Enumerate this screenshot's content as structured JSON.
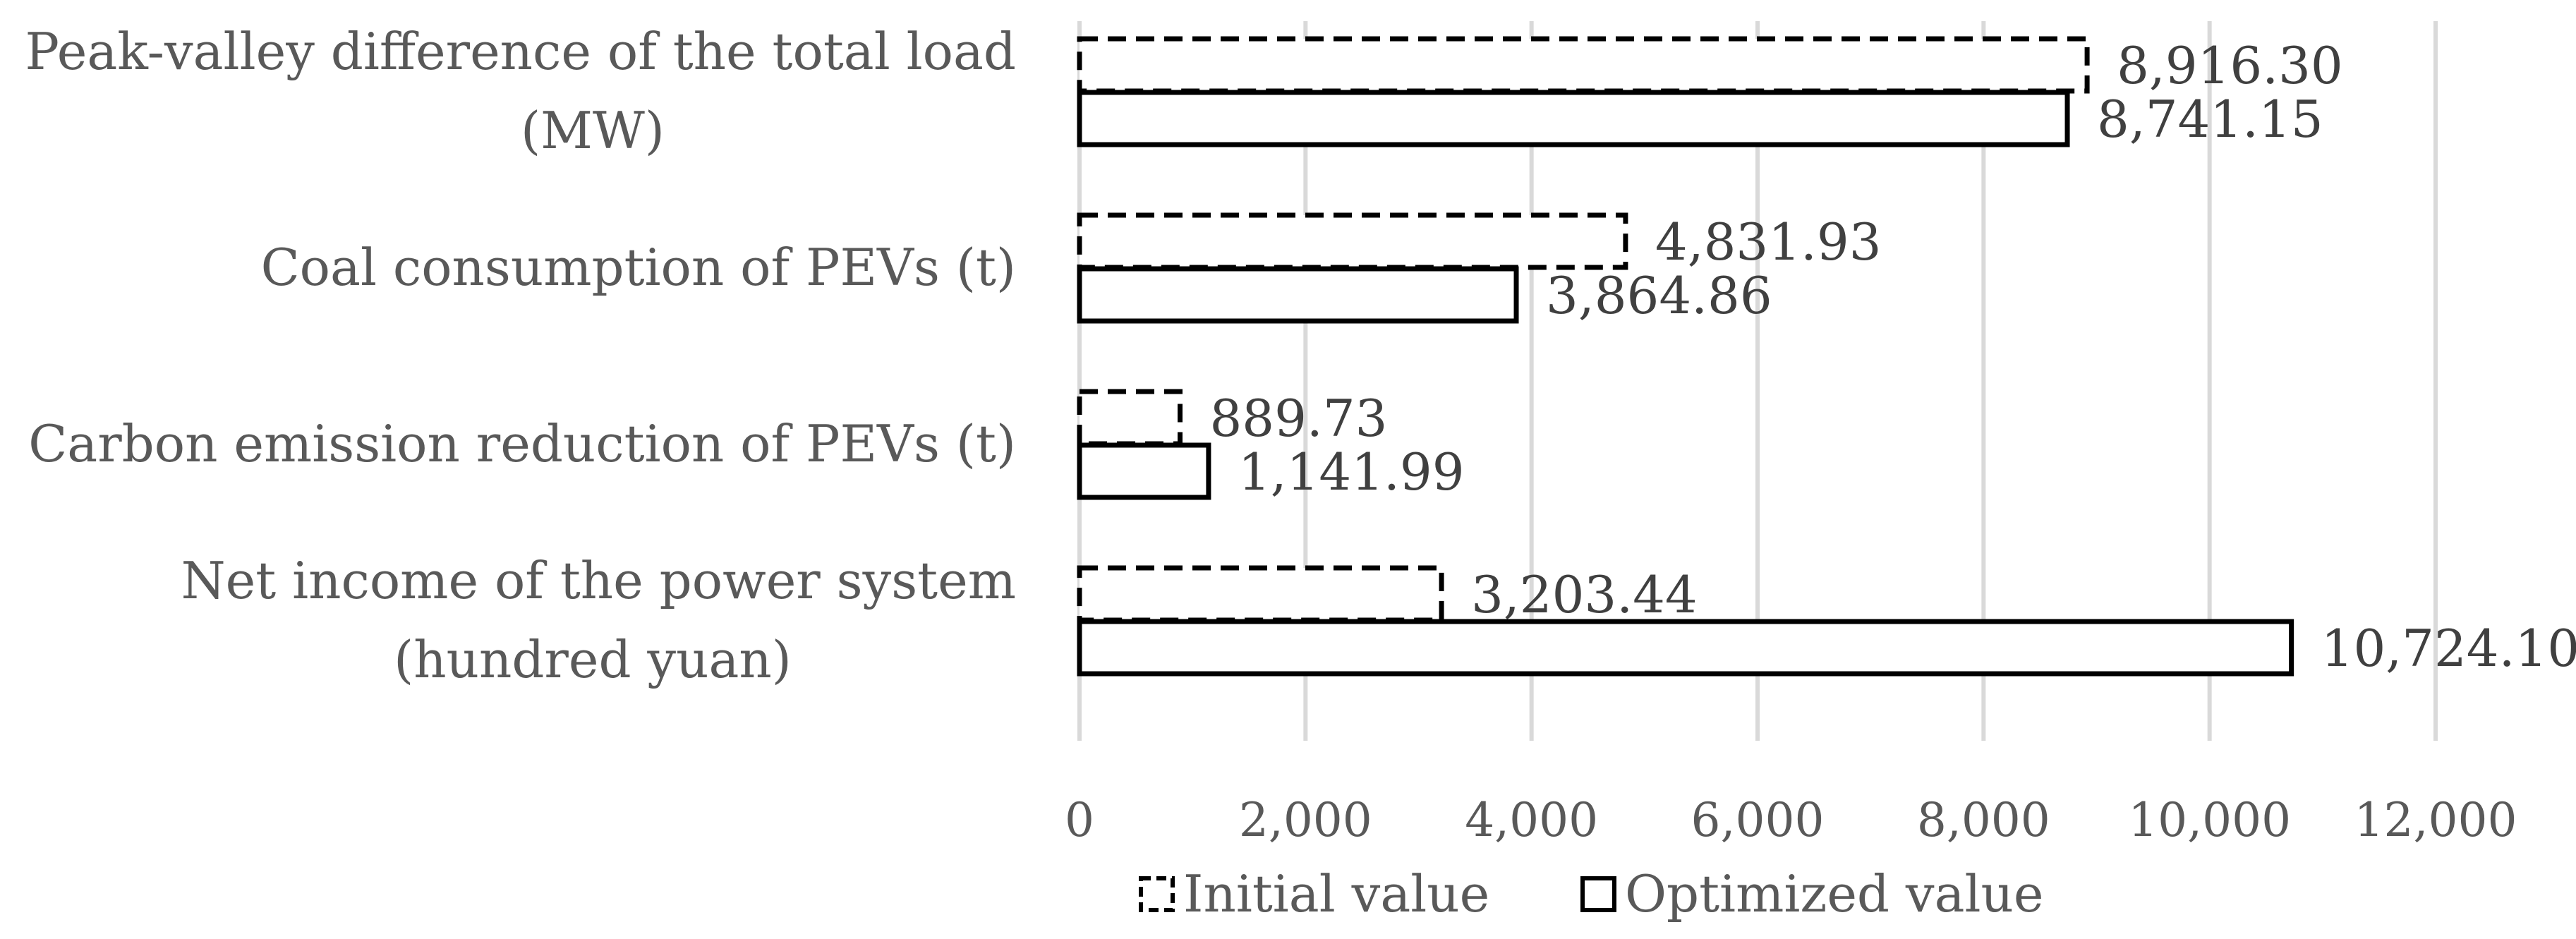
{
  "chart_data": {
    "type": "bar",
    "orientation": "horizontal",
    "categories": [
      [
        "Peak-valley difference of the total load",
        "(MW)"
      ],
      [
        "Coal consumption of PEVs (t)"
      ],
      [
        "Carbon emission reduction of PEVs (t)"
      ],
      [
        "Net income of the power system",
        "(hundred yuan)"
      ]
    ],
    "series": [
      {
        "name": "Initial value",
        "style": "dashed",
        "values": [
          8916.3,
          4831.93,
          889.73,
          3203.44
        ],
        "labels": [
          "8,916.30",
          "4,831.93",
          "889.73",
          "3,203.44"
        ]
      },
      {
        "name": "Optimized value",
        "style": "solid",
        "values": [
          8741.15,
          3864.86,
          1141.99,
          10724.1
        ],
        "labels": [
          "8,741.15",
          "3,864.86",
          "1,141.99",
          "10,724.10"
        ]
      }
    ],
    "xlim": [
      0,
      12000
    ],
    "xticks": [
      0,
      2000,
      4000,
      6000,
      8000,
      10000,
      12000
    ],
    "xtick_labels": [
      "0",
      "2,000",
      "4,000",
      "6,000",
      "8,000",
      "10,000",
      "12,000"
    ],
    "grid": true,
    "legend_position": "bottom",
    "colors": {
      "bar_stroke": "#000000",
      "bar_fill": "#ffffff",
      "grid": "#d9d9d9",
      "text": "#595959"
    }
  }
}
